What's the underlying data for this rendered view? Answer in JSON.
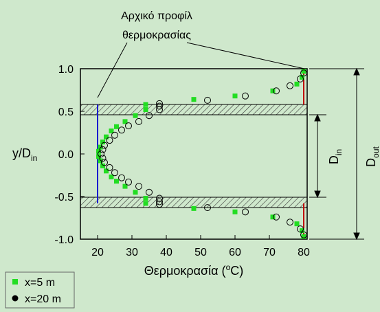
{
  "chart_data": {
    "type": "scatter",
    "annotation": [
      "Αρχικό προφίλ",
      "θερμοκρασίας"
    ],
    "x_label": {
      "text": "Θερμοκρασία (",
      "sup": "o",
      "tail": "C)"
    },
    "y_label": {
      "text": "y/D",
      "sub": "in"
    },
    "dimensions": [
      {
        "text": "D",
        "sub": "in"
      },
      {
        "text": "D",
        "sub": "out"
      }
    ],
    "xlim": [
      15,
      81
    ],
    "ylim": [
      -1,
      1
    ],
    "xticks": [
      20,
      30,
      40,
      50,
      60,
      70,
      80
    ],
    "yticks": [
      {
        "value": 1,
        "label": "1.0"
      },
      0.5,
      {
        "value": 0,
        "label": "0.0"
      },
      -0.5,
      {
        "value": -1,
        "label": "-1.0"
      }
    ],
    "profiles": [
      {
        "color": "#1a1ad0",
        "x": [
          20,
          20
        ],
        "y": [
          0.58,
          -0.58
        ]
      },
      {
        "color": "#c00000",
        "x": [
          80,
          80
        ],
        "y": [
          1,
          0.58
        ]
      },
      {
        "color": "#c00000",
        "x": [
          80,
          80
        ],
        "y": [
          -0.58,
          -1
        ]
      }
    ],
    "series": [
      {
        "name": "x=5 m",
        "color": "#22dd22",
        "marker": "square",
        "x": [
          80,
          79.5,
          78,
          71,
          60,
          48,
          34,
          34,
          31,
          28,
          25.5,
          24,
          22.5,
          21.5,
          20.8,
          20.3,
          20.3,
          20.8,
          21.5,
          22.5,
          24,
          25.5,
          28,
          31,
          34,
          34,
          48,
          60,
          71,
          78,
          79.5,
          80
        ],
        "values": [
          0.97,
          0.9,
          0.82,
          0.74,
          0.68,
          0.64,
          0.58,
          0.52,
          0.45,
          0.38,
          0.32,
          0.27,
          0.2,
          0.14,
          0.08,
          0.03,
          -0.03,
          -0.08,
          -0.14,
          -0.2,
          -0.27,
          -0.32,
          -0.38,
          -0.45,
          -0.52,
          -0.58,
          -0.64,
          -0.68,
          -0.74,
          -0.82,
          -0.9,
          -0.97
        ]
      },
      {
        "name": "x=20 m",
        "color": "#000000",
        "marker": "circle",
        "x": [
          80,
          79,
          76,
          72,
          63,
          52,
          38,
          38,
          38,
          35,
          32,
          29,
          27,
          25,
          23.5,
          22,
          21.5,
          21,
          21.5,
          22,
          23.5,
          25,
          27,
          29,
          32,
          35,
          38,
          38,
          38,
          52,
          63,
          72,
          76,
          79,
          80
        ],
        "values": [
          0.95,
          0.88,
          0.8,
          0.74,
          0.68,
          0.63,
          0.59,
          0.56,
          0.52,
          0.45,
          0.38,
          0.33,
          0.28,
          0.22,
          0.16,
          0.1,
          0.05,
          0,
          -0.05,
          -0.1,
          -0.16,
          -0.22,
          -0.28,
          -0.33,
          -0.38,
          -0.45,
          -0.52,
          -0.56,
          -0.59,
          -0.63,
          -0.68,
          -0.74,
          -0.8,
          -0.88,
          -0.95
        ]
      }
    ]
  }
}
